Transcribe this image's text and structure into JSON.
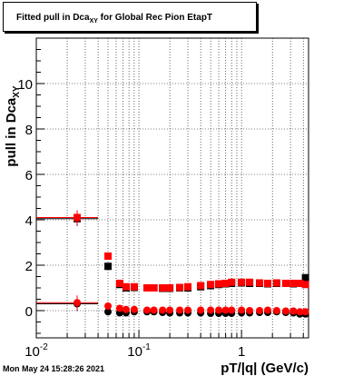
{
  "title": {
    "pre": "Fitted pull in Dca",
    "sub": "XY",
    "post": " for Global Rec Pion EtapT"
  },
  "footer": {
    "timestamp": "Mon May 24 15:28:26 2021"
  },
  "chart_data": {
    "type": "scatter",
    "title": "Fitted pull in Dca_XY for Global Rec Pion EtapT",
    "xlabel": "pT/|q| (GeV/c)",
    "ylabel": "pull in Dca_XY",
    "xscale": "log",
    "xlim": [
      0.01,
      4.5
    ],
    "ylim": [
      -1.2,
      12
    ],
    "grid": true,
    "xticks": [
      {
        "v": 0.01,
        "base": "10",
        "exp": "-2"
      },
      {
        "v": 0.1,
        "base": "10",
        "exp": "-1"
      },
      {
        "v": 1,
        "base": "1",
        "exp": ""
      }
    ],
    "yticks": [
      "0",
      "2",
      "4",
      "6",
      "8",
      "10"
    ],
    "series": [
      {
        "color": "#000000",
        "marker": "square",
        "x": [
          0.025,
          0.05,
          0.065,
          0.075,
          0.09,
          0.12,
          0.14,
          0.17,
          0.2,
          0.25,
          0.3,
          0.4,
          0.5,
          0.6,
          0.7,
          0.8,
          1.0,
          1.2,
          1.5,
          1.8,
          2.2,
          2.7,
          3.2,
          3.7,
          4.2
        ],
        "y": [
          4.05,
          1.95,
          1.15,
          1.0,
          1.02,
          1.0,
          1.0,
          0.98,
          0.98,
          1.0,
          1.0,
          1.05,
          1.1,
          1.15,
          1.18,
          1.2,
          1.22,
          1.2,
          1.2,
          1.18,
          1.2,
          1.2,
          1.18,
          1.2,
          1.45
        ]
      },
      {
        "color": "#ff0000",
        "marker": "square",
        "x": [
          0.025,
          0.05,
          0.065,
          0.075,
          0.09,
          0.12,
          0.14,
          0.17,
          0.2,
          0.25,
          0.3,
          0.4,
          0.5,
          0.6,
          0.7,
          0.8,
          1.0,
          1.2,
          1.5,
          1.8,
          2.2,
          2.7,
          3.2,
          3.7,
          4.2
        ],
        "y": [
          4.1,
          2.4,
          1.2,
          1.05,
          1.05,
          1.0,
          1.0,
          1.0,
          1.0,
          1.02,
          1.05,
          1.1,
          1.15,
          1.18,
          1.2,
          1.25,
          1.25,
          1.25,
          1.22,
          1.2,
          1.22,
          1.2,
          1.2,
          1.2,
          1.15
        ]
      },
      {
        "color": "#000000",
        "marker": "circle",
        "x": [
          0.025,
          0.05,
          0.065,
          0.075,
          0.09,
          0.12,
          0.14,
          0.17,
          0.2,
          0.25,
          0.3,
          0.4,
          0.5,
          0.6,
          0.7,
          0.8,
          1.0,
          1.2,
          1.5,
          1.8,
          2.2,
          2.7,
          3.2,
          3.7,
          4.2
        ],
        "y": [
          0.3,
          -0.05,
          -0.1,
          -0.1,
          -0.05,
          -0.05,
          -0.05,
          -0.08,
          -0.1,
          -0.1,
          -0.1,
          -0.1,
          -0.12,
          -0.12,
          -0.12,
          -0.12,
          -0.1,
          -0.1,
          -0.08,
          -0.08,
          -0.05,
          -0.08,
          -0.1,
          -0.15,
          -0.15
        ]
      },
      {
        "color": "#ff0000",
        "marker": "circle",
        "x": [
          0.025,
          0.05,
          0.065,
          0.075,
          0.09,
          0.12,
          0.14,
          0.17,
          0.2,
          0.25,
          0.3,
          0.4,
          0.5,
          0.6,
          0.7,
          0.8,
          1.0,
          1.2,
          1.5,
          1.8,
          2.2,
          2.7,
          3.2,
          3.7,
          4.2
        ],
        "y": [
          0.35,
          0.2,
          0.1,
          0.05,
          0.05,
          0.02,
          0.02,
          0.02,
          0.02,
          0.02,
          0.02,
          0.02,
          0.02,
          0.02,
          0.02,
          0.02,
          0.02,
          0.0,
          0.0,
          0.02,
          0.0,
          -0.02,
          -0.02,
          -0.05,
          -0.05
        ]
      }
    ]
  }
}
